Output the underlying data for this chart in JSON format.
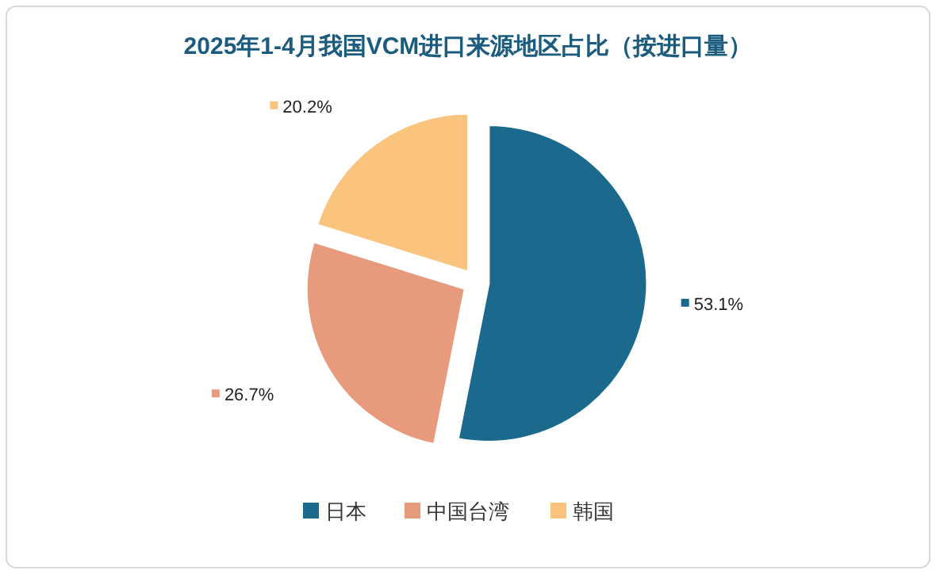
{
  "chart_data": {
    "type": "pie",
    "title": "2025年1-4月我国VCM进口来源地区占比（按进口量）",
    "categories": [
      "日本",
      "中国台湾",
      "韩国"
    ],
    "values": [
      53.1,
      26.7,
      20.2
    ],
    "colors": [
      "#1b6a8e",
      "#e89b7c",
      "#fbc47e"
    ],
    "value_labels": [
      "53.1%",
      "26.7%",
      "20.2%"
    ],
    "legend": "bottom"
  }
}
